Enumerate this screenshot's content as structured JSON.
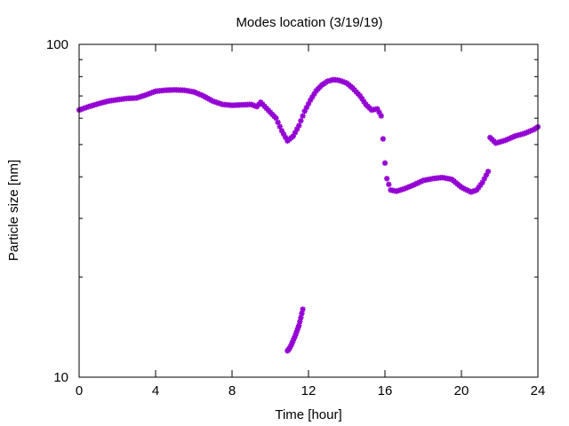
{
  "chart_data": {
    "type": "scatter",
    "title": "Modes location (3/19/19)",
    "xlabel": "Time [hour]",
    "ylabel": "Particle size [nm]",
    "xlim": [
      0,
      24
    ],
    "ylim": [
      10,
      100
    ],
    "yscale": "log",
    "x_ticks": [
      0,
      4,
      8,
      12,
      16,
      20,
      24
    ],
    "x_tick_labels": [
      "0",
      "4",
      "8",
      "12",
      "16",
      "20",
      "24"
    ],
    "y_tick_labels": [
      {
        "value": 10,
        "label": "10"
      },
      {
        "value": 100,
        "label": "100"
      }
    ],
    "y_minor_ticks": [
      20,
      30,
      40,
      50,
      60,
      70,
      80,
      90
    ],
    "grid": false,
    "legend": "none",
    "marker": "asterisk",
    "color": "#9400d3",
    "series": [
      {
        "points": [
          [
            0.0,
            63.5
          ],
          [
            0.5,
            65.0
          ],
          [
            1.0,
            66.3
          ],
          [
            1.5,
            67.5
          ],
          [
            2.0,
            68.2
          ],
          [
            2.5,
            68.8
          ],
          [
            3.0,
            69.0
          ],
          [
            3.5,
            70.5
          ],
          [
            4.0,
            72.3
          ],
          [
            4.5,
            72.8
          ],
          [
            5.0,
            73.0
          ],
          [
            5.5,
            72.8
          ],
          [
            6.0,
            72.0
          ],
          [
            6.5,
            70.0
          ],
          [
            7.0,
            67.5
          ],
          [
            7.5,
            66.0
          ],
          [
            8.0,
            65.6
          ],
          [
            8.5,
            65.8
          ],
          [
            9.0,
            66.0
          ],
          [
            9.3,
            65.0
          ],
          [
            9.5,
            67.0
          ],
          [
            10.0,
            62.5
          ],
          [
            10.3,
            60.0
          ],
          [
            10.6,
            55.0
          ],
          [
            10.9,
            51.3
          ],
          [
            11.2,
            53.0
          ],
          [
            11.5,
            57.0
          ],
          [
            11.8,
            63.0
          ],
          [
            12.1,
            68.0
          ],
          [
            12.4,
            72.5
          ],
          [
            12.7,
            75.5
          ],
          [
            13.0,
            77.5
          ],
          [
            13.3,
            78.3
          ],
          [
            13.6,
            78.0
          ],
          [
            14.0,
            76.5
          ],
          [
            14.3,
            74.0
          ],
          [
            14.7,
            70.0
          ],
          [
            15.0,
            66.0
          ],
          [
            15.3,
            63.5
          ],
          [
            15.6,
            64.0
          ],
          [
            15.8,
            61.0
          ],
          [
            15.9,
            52.0
          ],
          [
            16.0,
            44.0
          ],
          [
            16.1,
            39.5
          ],
          [
            16.3,
            36.5
          ],
          [
            16.6,
            36.2
          ],
          [
            17.0,
            36.8
          ],
          [
            17.5,
            37.8
          ],
          [
            18.0,
            39.0
          ],
          [
            18.5,
            39.5
          ],
          [
            19.0,
            39.8
          ],
          [
            19.5,
            39.3
          ],
          [
            20.0,
            37.2
          ],
          [
            20.5,
            36.0
          ],
          [
            20.8,
            36.5
          ],
          [
            21.1,
            38.5
          ],
          [
            21.4,
            41.5
          ],
          [
            21.5,
            52.5
          ],
          [
            21.8,
            50.5
          ],
          [
            22.3,
            51.5
          ],
          [
            22.8,
            53.0
          ],
          [
            23.3,
            54.0
          ],
          [
            23.8,
            55.5
          ],
          [
            24.0,
            56.5
          ]
        ]
      },
      {
        "points": [
          [
            10.9,
            12.0
          ],
          [
            11.0,
            12.2
          ],
          [
            11.1,
            12.5
          ],
          [
            11.2,
            12.9
          ],
          [
            11.3,
            13.3
          ],
          [
            11.4,
            13.8
          ],
          [
            11.5,
            14.3
          ],
          [
            11.6,
            15.1
          ],
          [
            11.7,
            16.0
          ]
        ]
      }
    ]
  }
}
